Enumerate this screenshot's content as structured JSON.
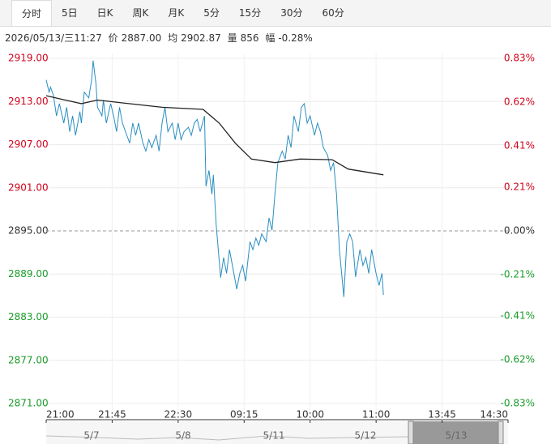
{
  "tabs": [
    "分时",
    "5日",
    "日K",
    "周K",
    "月K",
    "5分",
    "15分",
    "30分",
    "60分"
  ],
  "active_tab": 0,
  "chart_data": {
    "type": "line",
    "info": {
      "time": "2026/05/13/三11:27",
      "price_label": "价",
      "price": "2887.00",
      "avg_label": "均",
      "avg": "2902.87",
      "vol_label": "量",
      "vol": "856",
      "chg_label": "幅",
      "chg": "-0.28%"
    },
    "xlim": [
      0,
      315
    ],
    "xticks": [
      {
        "value": 0,
        "label": "21:00"
      },
      {
        "value": 45,
        "label": "21:45"
      },
      {
        "value": 90,
        "label": "22:30"
      },
      {
        "value": 135,
        "label": "09:15"
      },
      {
        "value": 180,
        "label": "10:00"
      },
      {
        "value": 225,
        "label": "11:00"
      },
      {
        "value": 270,
        "label": "13:45"
      },
      {
        "value": 315,
        "label": "14:30"
      }
    ],
    "ylim": [
      2871,
      2919
    ],
    "yticks": [
      {
        "value": 2919,
        "label": "2919.00"
      },
      {
        "value": 2913,
        "label": "2913.00"
      },
      {
        "value": 2907,
        "label": "2907.00"
      },
      {
        "value": 2901,
        "label": "2901.00"
      },
      {
        "value": 2895,
        "label": "2895.00"
      },
      {
        "value": 2889,
        "label": "2889.00"
      },
      {
        "value": 2883,
        "label": "2883.00"
      },
      {
        "value": 2877,
        "label": "2877.00"
      },
      {
        "value": 2871,
        "label": "2871.00"
      }
    ],
    "y2lim": [
      -0.83,
      0.83
    ],
    "y2ticks": [
      {
        "value": 0.83,
        "label": "0.83%"
      },
      {
        "value": 0.62,
        "label": "0.62%"
      },
      {
        "value": 0.41,
        "label": "0.41%"
      },
      {
        "value": 0.21,
        "label": "0.21%"
      },
      {
        "value": 0,
        "label": "0.00%"
      },
      {
        "value": -0.21,
        "label": "-0.21%"
      },
      {
        "value": -0.41,
        "label": "-0.41%"
      },
      {
        "value": -0.62,
        "label": "-0.62%"
      },
      {
        "value": -0.83,
        "label": "-0.83%"
      }
    ],
    "baseline": 2895,
    "up_color": "#d0021b",
    "down_color": "#1a9b2a",
    "flat_color": "#333333",
    "grid": true,
    "series": [
      {
        "color": "#2a8ec2",
        "x": [
          0,
          2,
          3,
          5,
          7,
          9,
          12,
          14,
          16,
          18,
          20,
          23,
          24,
          26,
          29,
          31,
          32,
          34,
          35,
          38,
          39,
          41,
          44,
          46,
          48,
          50,
          52,
          55,
          57,
          59,
          61,
          63,
          66,
          68,
          70,
          72,
          75,
          77,
          79,
          81,
          83,
          86,
          88,
          90,
          92,
          94,
          97,
          99,
          101,
          103,
          105,
          108,
          109,
          111,
          113,
          114,
          116,
          119,
          121,
          123,
          125,
          128,
          130,
          132,
          134,
          136,
          139,
          141,
          143,
          145,
          147,
          150,
          152,
          154,
          156,
          158,
          161,
          163,
          165,
          167,
          169,
          172,
          174,
          176,
          178,
          180,
          183,
          185,
          187,
          189,
          192,
          194,
          196,
          198,
          200,
          203,
          205,
          207,
          209,
          211,
          214,
          216,
          218,
          220,
          222,
          225,
          227,
          229,
          230
        ],
        "values": [
          2916,
          2914.3,
          2915,
          2913.8,
          2911,
          2912.7,
          2910,
          2912.2,
          2908.8,
          2911,
          2908.3,
          2911.6,
          2910,
          2914.3,
          2913.5,
          2916,
          2918.7,
          2915.4,
          2912.2,
          2911,
          2913.2,
          2910,
          2912.7,
          2911,
          2908.8,
          2912.2,
          2910,
          2908.3,
          2907.2,
          2910,
          2908.3,
          2910,
          2907.2,
          2906.1,
          2907.7,
          2906.6,
          2908.3,
          2906.1,
          2910,
          2912.2,
          2908.8,
          2910,
          2907.7,
          2910,
          2907.7,
          2908.8,
          2909.4,
          2908.3,
          2910,
          2910.5,
          2908.8,
          2911,
          2901.2,
          2903.4,
          2900.1,
          2902.8,
          2895.7,
          2888.5,
          2891.3,
          2889.1,
          2892.4,
          2889.1,
          2886.9,
          2889.1,
          2890.2,
          2888,
          2893.5,
          2892.4,
          2894,
          2893,
          2894.6,
          2893.5,
          2896.8,
          2895.1,
          2900.1,
          2904.5,
          2906.1,
          2905,
          2908.3,
          2906.6,
          2911,
          2908.8,
          2912.2,
          2912.7,
          2910,
          2911,
          2908.3,
          2910,
          2908.8,
          2906.6,
          2905.5,
          2903.4,
          2904.5,
          2900.1,
          2892.4,
          2885.8,
          2893.5,
          2894.6,
          2893.5,
          2888.6,
          2892.4,
          2890.2,
          2891.3,
          2889.1,
          2892.4,
          2889.1,
          2887.4,
          2889.1,
          2886.1
        ]
      },
      {
        "color": "#222222",
        "x": [
          0,
          13,
          24,
          35,
          52,
          79,
          107,
          118,
          129,
          140,
          156,
          173,
          195,
          206,
          230
        ],
        "values": [
          2913.8,
          2913.2,
          2912.7,
          2913.2,
          2912.8,
          2912.2,
          2911.9,
          2910,
          2907.2,
          2905,
          2904.5,
          2905,
          2904.9,
          2903.6,
          2902.8
        ]
      }
    ],
    "navigator": {
      "labels": [
        "5/7",
        "5/8",
        "5/11",
        "5/12",
        "5/13"
      ]
    }
  }
}
